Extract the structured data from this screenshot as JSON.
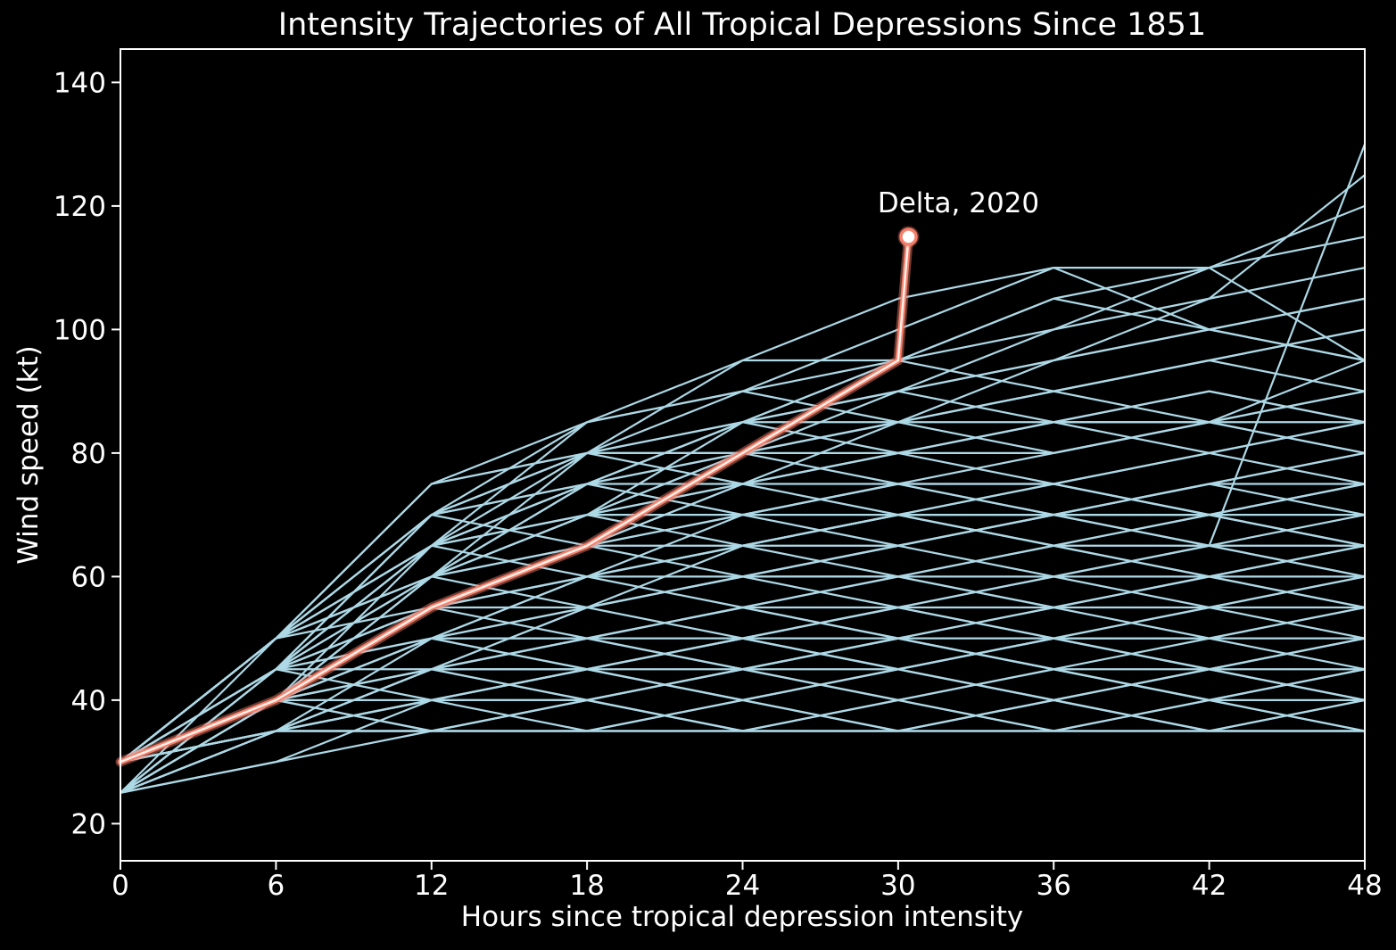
{
  "chart_data": {
    "type": "line",
    "title": "Intensity Trajectories of All Tropical Depressions Since 1851",
    "xlabel": "Hours since tropical depression intensity",
    "ylabel": "Wind speed (kt)",
    "xlim": [
      0,
      48
    ],
    "ylim": [
      13.99,
      145.4
    ],
    "xticks": [
      0,
      6,
      12,
      18,
      24,
      30,
      36,
      42,
      48
    ],
    "yticks": [
      20,
      40,
      60,
      80,
      100,
      120,
      140
    ],
    "grid": false,
    "legend": "none",
    "background_color": "#000000",
    "axis_color": "#ffffff",
    "text_color": "#ffffff",
    "trajectory_color": "#add8e6",
    "highlight_color": "#f4806c",
    "highlight_core_color": "#ffffff",
    "hours": [
      0,
      6,
      12,
      18,
      24,
      30,
      36,
      42,
      48
    ],
    "trajectories": [
      [
        30,
        35,
        35,
        35,
        35,
        35,
        35,
        35,
        35
      ],
      [
        25,
        35,
        35,
        35,
        35,
        35,
        35,
        35,
        35
      ],
      [
        25,
        30,
        35,
        35,
        35,
        35,
        35,
        35,
        35
      ],
      [
        30,
        35,
        40,
        40,
        35,
        35,
        40,
        35,
        35
      ],
      [
        30,
        40,
        35,
        40,
        35,
        40,
        35,
        40,
        35
      ],
      [
        25,
        35,
        40,
        35,
        40,
        35,
        40,
        35,
        40
      ],
      [
        30,
        35,
        35,
        40,
        45,
        40,
        35,
        40,
        45
      ],
      [
        30,
        40,
        45,
        40,
        45,
        40,
        45,
        40,
        35
      ],
      [
        25,
        35,
        45,
        45,
        40,
        45,
        40,
        45,
        40
      ],
      [
        30,
        45,
        40,
        45,
        40,
        45,
        50,
        45,
        40
      ],
      [
        30,
        35,
        40,
        45,
        50,
        45,
        40,
        45,
        50
      ],
      [
        25,
        40,
        45,
        50,
        45,
        50,
        45,
        40,
        45
      ],
      [
        30,
        40,
        50,
        45,
        50,
        45,
        50,
        45,
        50
      ],
      [
        30,
        45,
        50,
        45,
        50,
        55,
        50,
        45,
        45
      ],
      [
        25,
        35,
        40,
        40,
        45,
        45,
        50,
        50,
        50
      ],
      [
        30,
        40,
        40,
        45,
        45,
        50,
        50,
        55,
        55
      ],
      [
        30,
        35,
        45,
        50,
        50,
        45,
        50,
        50,
        45
      ],
      [
        25,
        40,
        50,
        50,
        45,
        50,
        45,
        50,
        55
      ],
      [
        30,
        45,
        45,
        50,
        55,
        50,
        55,
        50,
        55
      ],
      [
        30,
        40,
        45,
        45,
        50,
        55,
        55,
        60,
        60
      ],
      [
        30,
        35,
        35,
        40,
        35,
        40,
        45,
        40,
        40
      ],
      [
        25,
        35,
        40,
        45,
        40,
        35,
        40,
        45,
        40
      ],
      [
        30,
        35,
        45,
        40,
        45,
        50,
        45,
        40,
        45
      ],
      [
        30,
        40,
        35,
        35,
        40,
        45,
        40,
        35,
        40
      ],
      [
        25,
        30,
        40,
        45,
        50,
        50,
        45,
        45,
        50
      ],
      [
        30,
        35,
        50,
        55,
        50,
        55,
        50,
        55,
        50
      ],
      [
        30,
        45,
        55,
        50,
        55,
        50,
        55,
        60,
        55
      ],
      [
        30,
        40,
        50,
        55,
        60,
        55,
        60,
        55,
        60
      ],
      [
        25,
        45,
        55,
        60,
        55,
        60,
        55,
        60,
        65
      ],
      [
        30,
        50,
        55,
        60,
        65,
        60,
        65,
        60,
        55
      ],
      [
        30,
        45,
        60,
        65,
        60,
        65,
        60,
        65,
        60
      ],
      [
        30,
        50,
        60,
        55,
        60,
        65,
        70,
        65,
        70
      ],
      [
        25,
        40,
        55,
        65,
        65,
        70,
        65,
        60,
        65
      ],
      [
        30,
        50,
        65,
        60,
        65,
        70,
        65,
        70,
        65
      ],
      [
        30,
        45,
        50,
        60,
        65,
        65,
        70,
        70,
        75
      ],
      [
        30,
        50,
        60,
        65,
        70,
        65,
        70,
        75,
        70
      ],
      [
        25,
        45,
        60,
        70,
        65,
        70,
        75,
        70,
        75
      ],
      [
        30,
        50,
        65,
        70,
        70,
        75,
        70,
        75,
        80
      ],
      [
        30,
        40,
        55,
        60,
        70,
        75,
        75,
        80,
        75
      ],
      [
        30,
        50,
        60,
        70,
        75,
        70,
        75,
        80,
        85
      ],
      [
        30,
        45,
        55,
        65,
        75,
        80,
        75,
        70,
        75
      ],
      [
        25,
        50,
        65,
        75,
        70,
        75,
        80,
        85,
        80
      ],
      [
        30,
        50,
        70,
        65,
        75,
        80,
        85,
        80,
        85
      ],
      [
        30,
        45,
        65,
        70,
        80,
        85,
        80,
        85,
        90
      ],
      [
        30,
        50,
        60,
        75,
        85,
        80,
        85,
        90,
        85
      ],
      [
        30,
        40,
        60,
        80,
        75,
        85,
        90,
        85,
        95
      ],
      [
        25,
        40,
        45,
        55,
        60,
        60,
        55,
        55,
        60
      ],
      [
        30,
        45,
        55,
        55,
        60,
        60,
        65,
        65,
        60
      ],
      [
        30,
        40,
        50,
        50,
        55,
        60,
        60,
        65,
        65
      ],
      [
        25,
        35,
        45,
        50,
        55,
        55,
        60,
        60,
        65
      ],
      [
        30,
        40,
        55,
        65,
        70,
        70,
        65,
        70,
        70
      ],
      [
        30,
        35,
        45,
        55,
        65,
        70,
        70,
        75,
        75
      ],
      [
        25,
        40,
        50,
        60,
        60,
        65,
        70,
        70,
        65
      ],
      [
        30,
        45,
        65,
        75,
        80,
        80,
        85,
        85,
        80
      ],
      [
        30,
        40,
        60,
        70,
        75,
        80,
        80,
        85,
        90
      ],
      [
        25,
        45,
        70,
        75,
        75,
        75,
        75,
        70,
        65
      ],
      [
        30,
        50,
        70,
        80,
        80,
        75,
        70,
        75,
        80
      ],
      [
        30,
        50,
        75,
        80,
        85,
        85,
        85,
        85,
        85
      ],
      [
        30,
        45,
        70,
        80,
        80,
        85,
        90,
        95,
        100
      ],
      [
        30,
        50,
        75,
        80,
        85,
        90,
        95,
        100,
        105
      ],
      [
        25,
        45,
        65,
        75,
        85,
        95,
        100,
        105,
        110
      ],
      [
        30,
        50,
        70,
        85,
        90,
        100,
        110,
        110,
        95
      ],
      [
        30,
        45,
        65,
        80,
        95,
        105,
        110,
        100,
        95
      ],
      [
        30,
        50,
        75,
        85,
        95,
        95,
        105,
        110,
        115
      ],
      [
        30,
        45,
        55,
        60,
        65,
        70,
        70,
        65,
        130
      ],
      [
        30,
        50,
        65,
        70,
        80,
        90,
        95,
        105,
        125
      ],
      [
        25,
        40,
        60,
        70,
        85,
        90,
        100,
        110,
        120
      ],
      [
        30,
        50,
        70,
        75,
        85,
        95,
        105,
        100,
        105
      ],
      [
        30,
        45,
        60,
        75,
        80,
        85,
        95,
        100,
        95
      ],
      [
        30,
        50,
        65,
        85,
        90,
        95,
        90,
        95,
        100
      ],
      [
        25,
        45,
        70,
        80,
        90,
        85,
        90,
        95,
        90
      ],
      [
        30,
        40,
        65,
        75,
        85,
        90,
        85,
        90,
        85
      ]
    ],
    "highlight": {
      "name": "Delta, 2020",
      "points": [
        [
          0,
          30
        ],
        [
          6,
          40
        ],
        [
          12,
          55
        ],
        [
          18,
          65
        ],
        [
          24,
          80
        ],
        [
          30,
          95
        ],
        [
          30.4,
          115
        ]
      ],
      "marker": "circle"
    }
  }
}
